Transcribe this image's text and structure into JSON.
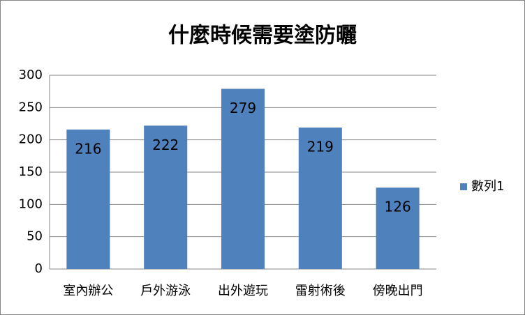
{
  "chart_data": {
    "type": "bar",
    "title": "什麼時候需要塗防曬",
    "categories": [
      "室內辦公",
      "戶外游泳",
      "出外遊玩",
      "雷射術後",
      "傍晚出門"
    ],
    "series": [
      {
        "name": "數列1",
        "color": "#4f81bd",
        "values": [
          216,
          222,
          279,
          219,
          126
        ]
      }
    ],
    "ylim": [
      0,
      300
    ],
    "yticks": [
      0,
      50,
      100,
      150,
      200,
      250,
      300
    ],
    "grid": true,
    "legend": "right"
  }
}
